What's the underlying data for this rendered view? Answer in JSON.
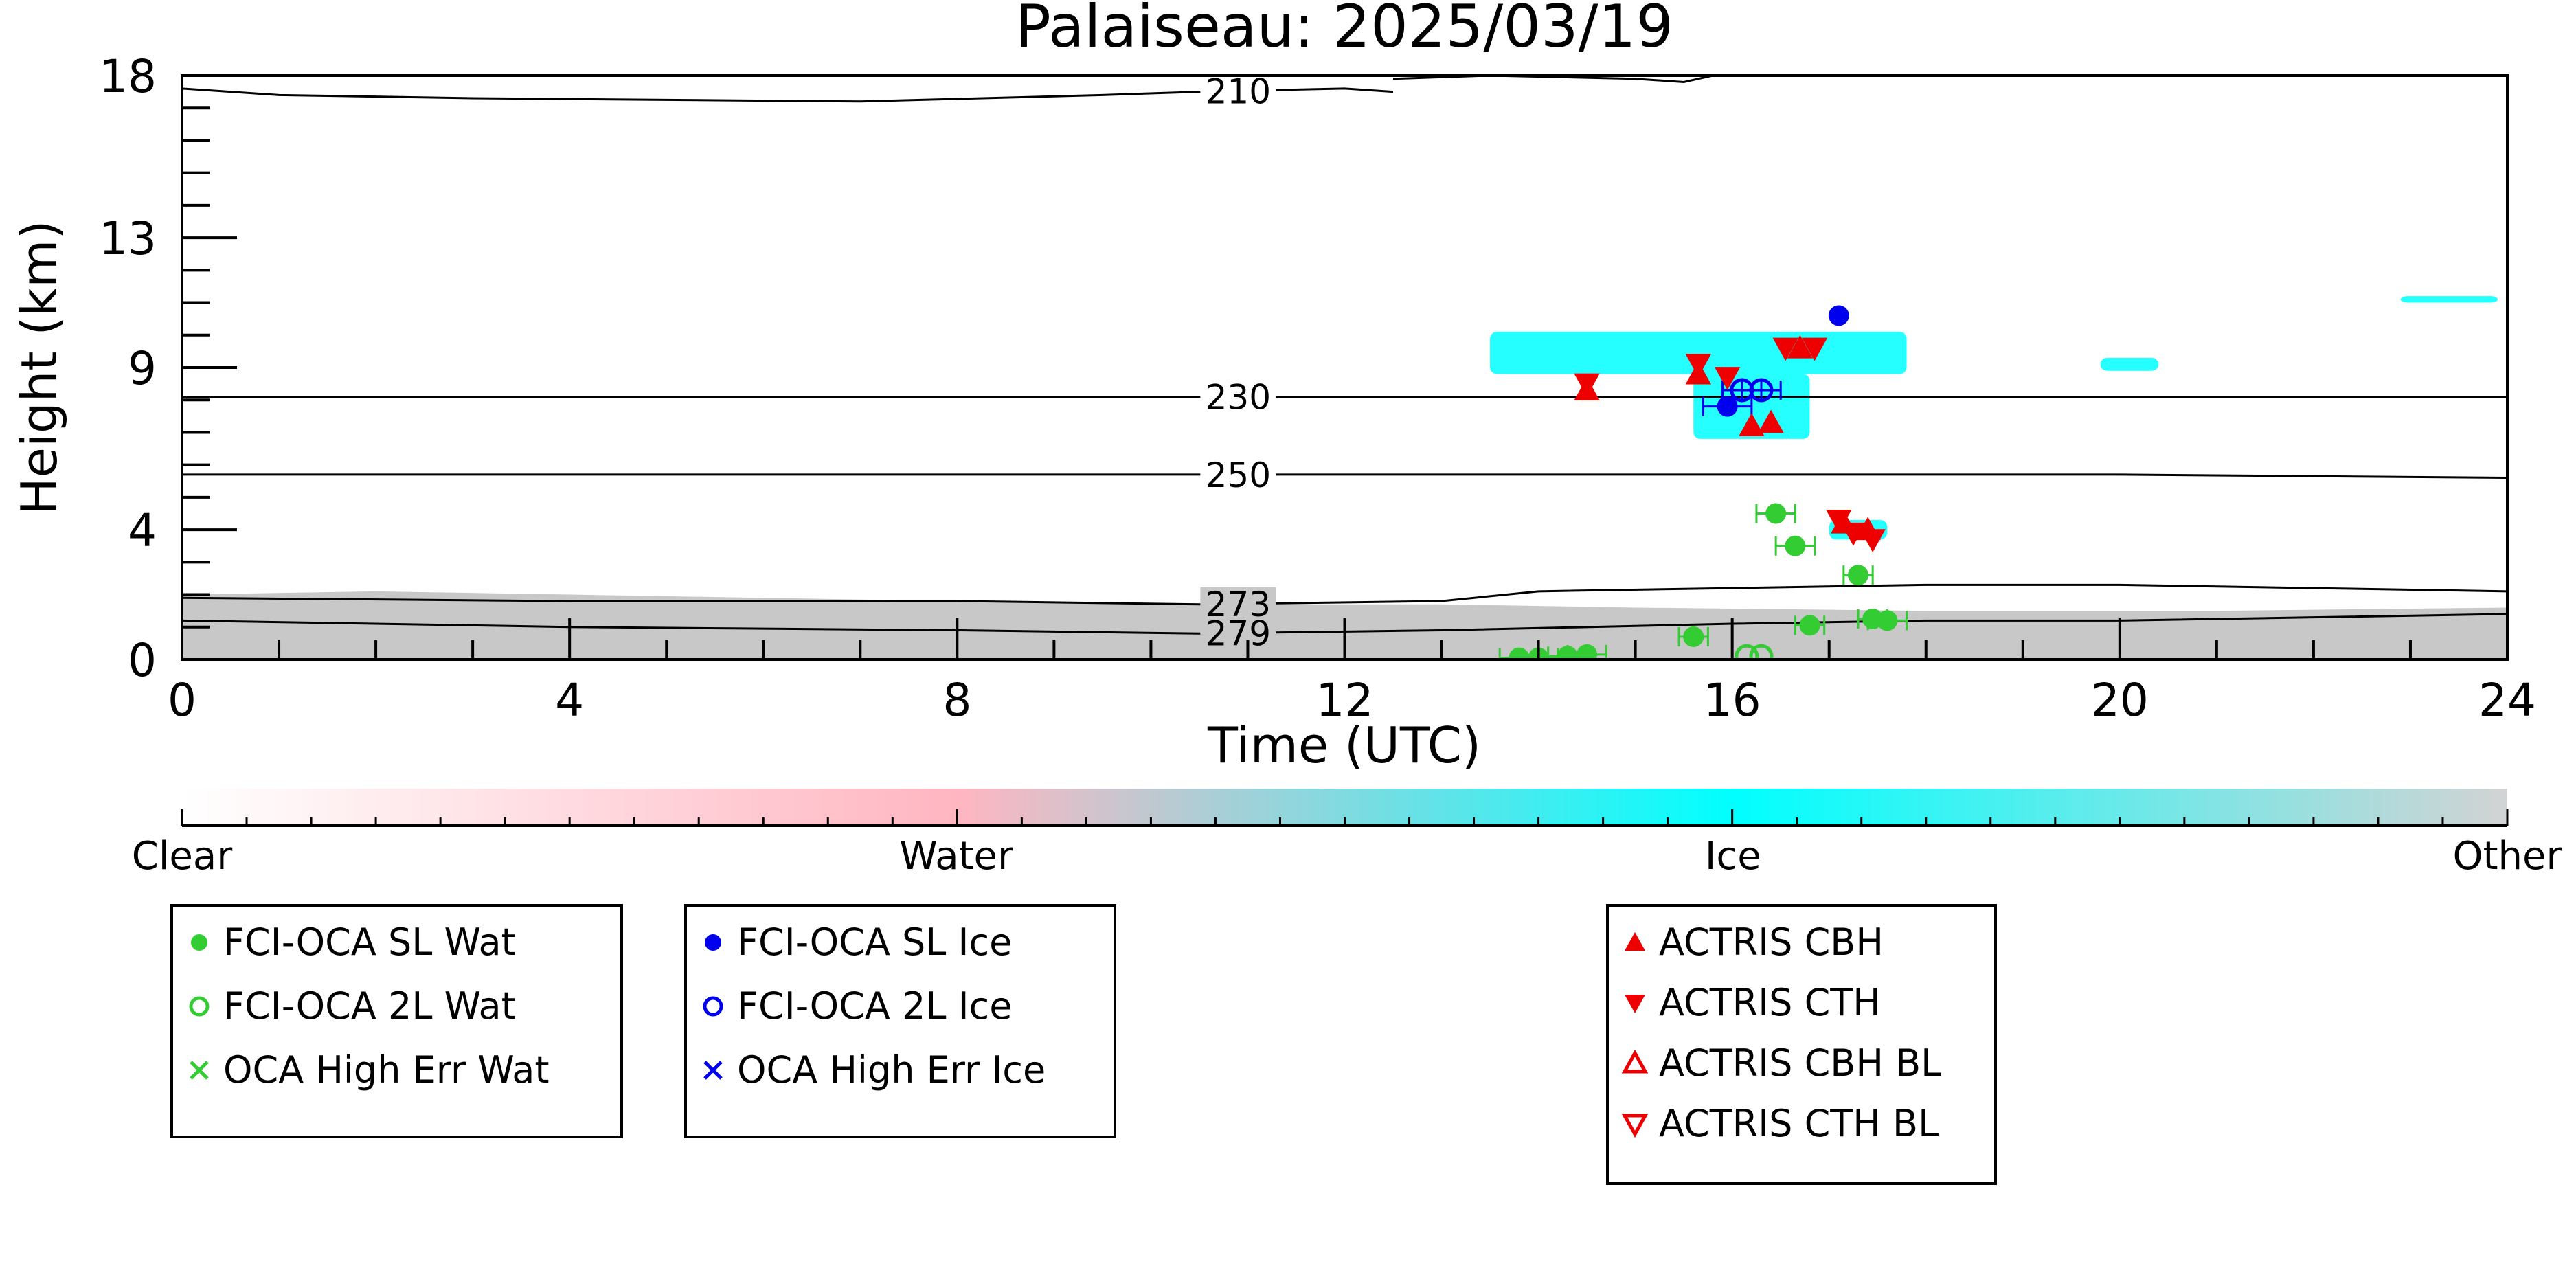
{
  "chart_data": {
    "type": "scatter",
    "title": "Palaiseau: 2025/03/19",
    "xlabel": "Time (UTC)",
    "ylabel": "Height (km)",
    "xlim": [
      0,
      24
    ],
    "ylim": [
      0,
      18
    ],
    "xticks": [
      0,
      4,
      8,
      12,
      16,
      20,
      24
    ],
    "yticks": [
      0,
      4,
      9,
      13,
      18
    ],
    "colors": {
      "water": "#33cc33",
      "ice": "#0000ee",
      "actris": "#ee0000",
      "ice_layer": "#00ffff",
      "other_layer": "#c8c8c8"
    },
    "contours": [
      {
        "label": "210",
        "points": [
          [
            0,
            17.6
          ],
          [
            1,
            17.4
          ],
          [
            3,
            17.3
          ],
          [
            7,
            17.2
          ],
          [
            9.5,
            17.4
          ],
          [
            10.5,
            17.5
          ],
          [
            12,
            17.6
          ],
          [
            12.5,
            17.5
          ]
        ],
        "points2": [
          [
            12.5,
            17.9
          ],
          [
            13.5,
            18.0
          ],
          [
            15,
            17.9
          ],
          [
            15.5,
            17.8
          ],
          [
            15.8,
            18.0
          ]
        ]
      },
      {
        "label": "230",
        "points": [
          [
            0,
            8.1
          ],
          [
            4,
            8.1
          ],
          [
            8,
            8.1
          ],
          [
            12,
            8.1
          ],
          [
            16,
            8.1
          ],
          [
            20,
            8.1
          ],
          [
            24,
            8.1
          ]
        ]
      },
      {
        "label": "250",
        "points": [
          [
            0,
            5.7
          ],
          [
            4,
            5.7
          ],
          [
            8,
            5.7
          ],
          [
            12,
            5.7
          ],
          [
            16,
            5.7
          ],
          [
            20,
            5.7
          ],
          [
            24,
            5.6
          ]
        ]
      },
      {
        "label": "273",
        "points": [
          [
            0,
            1.9
          ],
          [
            4,
            1.8
          ],
          [
            8,
            1.8
          ],
          [
            10.5,
            1.7
          ],
          [
            13,
            1.8
          ],
          [
            14,
            2.1
          ],
          [
            16,
            2.2
          ],
          [
            18,
            2.3
          ],
          [
            20,
            2.3
          ],
          [
            22,
            2.2
          ],
          [
            24,
            2.1
          ]
        ]
      },
      {
        "label": "279",
        "points": [
          [
            0,
            1.2
          ],
          [
            4,
            1.0
          ],
          [
            8,
            0.9
          ],
          [
            10.5,
            0.8
          ],
          [
            13,
            0.9
          ],
          [
            16,
            1.1
          ],
          [
            18,
            1.2
          ],
          [
            20,
            1.2
          ],
          [
            22,
            1.3
          ],
          [
            24,
            1.4
          ]
        ]
      }
    ],
    "series": [
      {
        "name": "FCI-OCA SL Wat",
        "marker": "filled-circle",
        "color": "#33cc33",
        "points": [
          [
            13.8,
            0.05
          ],
          [
            14.0,
            0.05
          ],
          [
            14.3,
            0.1
          ],
          [
            14.5,
            0.15
          ],
          [
            15.6,
            0.7
          ],
          [
            16.45,
            4.5
          ],
          [
            16.65,
            3.5
          ],
          [
            16.8,
            1.05
          ],
          [
            17.3,
            2.6
          ],
          [
            17.45,
            1.25
          ],
          [
            17.6,
            1.2
          ]
        ],
        "xerr": [
          0.2,
          0.2,
          0.2,
          0.2,
          0.15,
          0.2,
          0.2,
          0.15,
          0.15,
          0.15,
          0.2
        ]
      },
      {
        "name": "FCI-OCA 2L Wat",
        "marker": "open-circle",
        "color": "#33cc33",
        "points": [
          [
            16.15,
            0.1
          ],
          [
            16.3,
            0.1
          ]
        ],
        "xerr": [
          0,
          0
        ]
      },
      {
        "name": "OCA High Err Wat",
        "marker": "x",
        "color": "#33cc33",
        "points": [],
        "xerr": []
      },
      {
        "name": "FCI-OCA SL Ice",
        "marker": "filled-circle",
        "color": "#0000ee",
        "points": [
          [
            15.95,
            7.8
          ],
          [
            17.1,
            10.6
          ]
        ],
        "xerr": [
          0.25,
          0
        ]
      },
      {
        "name": "FCI-OCA 2L Ice",
        "marker": "open-circle",
        "color": "#0000ee",
        "points": [
          [
            16.1,
            8.3
          ],
          [
            16.3,
            8.3
          ]
        ],
        "xerr": [
          0.2,
          0.2
        ]
      },
      {
        "name": "OCA High Err Ice",
        "marker": "x",
        "color": "#0000ee",
        "points": [],
        "xerr": []
      },
      {
        "name": "ACTRIS CBH",
        "marker": "triangle-up",
        "color": "#ee0000",
        "points": [
          [
            14.5,
            8.3
          ],
          [
            15.65,
            8.8
          ],
          [
            16.2,
            7.2
          ],
          [
            16.4,
            7.3
          ],
          [
            16.7,
            9.6
          ],
          [
            17.15,
            4.2
          ],
          [
            17.4,
            4.0
          ]
        ],
        "xerr": []
      },
      {
        "name": "ACTRIS CTH",
        "marker": "triangle-down",
        "color": "#ee0000",
        "points": [
          [
            14.5,
            8.5
          ],
          [
            15.65,
            9.1
          ],
          [
            15.95,
            8.7
          ],
          [
            16.55,
            9.6
          ],
          [
            16.85,
            9.6
          ],
          [
            17.1,
            4.3
          ],
          [
            17.25,
            3.9
          ],
          [
            17.45,
            3.7
          ]
        ],
        "xerr": []
      },
      {
        "name": "ACTRIS CBH BL",
        "marker": "open-triangle-up",
        "color": "#ee0000",
        "points": [],
        "xerr": []
      },
      {
        "name": "ACTRIS CTH BL",
        "marker": "open-triangle-down",
        "color": "#ee0000",
        "points": [],
        "xerr": []
      }
    ],
    "ice_regions": [
      {
        "x": [
          13.5,
          17.8
        ],
        "y": [
          8.8,
          10.1
        ]
      },
      {
        "x": [
          15.6,
          16.8
        ],
        "y": [
          6.8,
          8.8
        ]
      },
      {
        "x": [
          17.0,
          17.6
        ],
        "y": [
          3.7,
          4.3
        ]
      },
      {
        "x": [
          19.8,
          20.4
        ],
        "y": [
          8.9,
          9.3
        ]
      },
      {
        "x": [
          22.9,
          23.9
        ],
        "y": [
          11.0,
          11.2
        ]
      }
    ],
    "other_layer": {
      "top": [
        [
          0,
          2.0
        ],
        [
          2,
          2.1
        ],
        [
          4,
          2.0
        ],
        [
          8,
          1.8
        ],
        [
          11,
          1.7
        ],
        [
          13,
          1.7
        ],
        [
          15,
          1.6
        ],
        [
          18,
          1.5
        ],
        [
          21,
          1.5
        ],
        [
          24,
          1.6
        ]
      ]
    },
    "colorbar": {
      "labels": [
        "Clear",
        "Water",
        "Ice",
        "Other"
      ],
      "positions": [
        0,
        0.333,
        0.667,
        1.0
      ],
      "colors": [
        "#ffffff",
        "#ffb6c1",
        "#00ffff",
        "#d3d3d3"
      ]
    },
    "legend_groups": [
      [
        "FCI-OCA SL Wat",
        "FCI-OCA 2L Wat",
        "OCA High Err Wat"
      ],
      [
        "FCI-OCA SL Ice",
        "FCI-OCA 2L Ice",
        "OCA High Err Ice"
      ],
      [
        "ACTRIS CBH",
        "ACTRIS CTH",
        "ACTRIS CBH BL",
        "ACTRIS CTH BL"
      ]
    ],
    "grid": false
  }
}
